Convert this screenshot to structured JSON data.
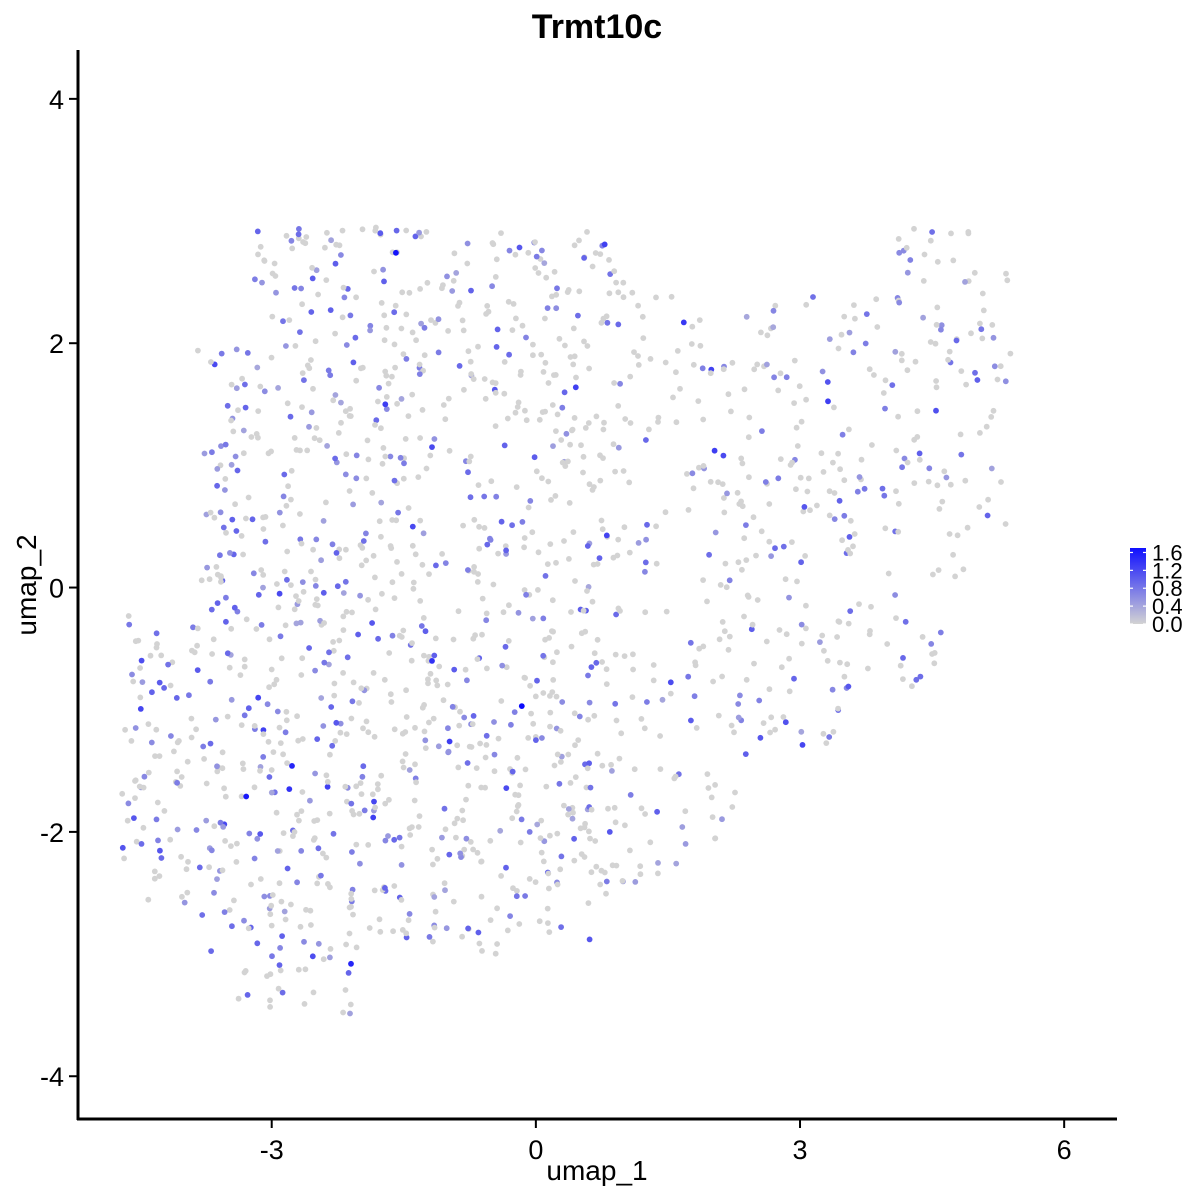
{
  "chart_data": {
    "type": "scatter",
    "title": "Trmt10c",
    "xlabel": "umap_1",
    "ylabel": "umap_2",
    "xlim": [
      -5.2,
      6.6
    ],
    "ylim": [
      -4.35,
      4.4
    ],
    "x_ticks": [
      -3,
      0,
      3,
      6
    ],
    "y_ticks": [
      -4,
      -2,
      0,
      2,
      4
    ],
    "x_tick_labels": [
      "-3",
      "0",
      "3",
      "6"
    ],
    "y_tick_labels": [
      "-4",
      "-2",
      "0",
      "2",
      "4"
    ],
    "grid": false,
    "legend": {
      "position": "right",
      "type": "colorbar",
      "labels": [
        "1.6",
        "1.2",
        "0.8",
        "0.4",
        "0.0"
      ],
      "breaks": [
        1.6,
        1.2,
        0.8,
        0.4,
        0.0
      ],
      "range": [
        0,
        1.7
      ]
    },
    "colors": {
      "low": "#d3d3d3",
      "high": "#0000ff"
    },
    "points": [
      {
        "x": -1.59,
        "y": 2.74,
        "v": 1.55
      },
      {
        "x": 1.68,
        "y": 2.17,
        "v": 1.25
      },
      {
        "x": -1.71,
        "y": 1.5,
        "v": 1.2
      },
      {
        "x": 2.03,
        "y": 1.12,
        "v": 1.2
      },
      {
        "x": 2.13,
        "y": 1.08,
        "v": 1.1
      },
      {
        "x": -1.18,
        "y": 1.15,
        "v": 1.1
      },
      {
        "x": -0.16,
        "y": -0.97,
        "v": 1.6
      },
      {
        "x": -1.18,
        "y": -0.6,
        "v": 1.3
      },
      {
        "x": -0.98,
        "y": -1.26,
        "v": 1.2
      },
      {
        "x": -3.29,
        "y": -1.71,
        "v": 1.5
      },
      {
        "x": -2.77,
        "y": -1.46,
        "v": 1.4
      },
      {
        "x": -2.8,
        "y": -1.65,
        "v": 1.3
      },
      {
        "x": -2.1,
        "y": -3.08,
        "v": 1.4
      },
      {
        "x": -2.91,
        "y": -0.05,
        "v": 1.1
      },
      {
        "x": -1.86,
        "y": -0.29,
        "v": 1.0
      },
      {
        "x": -3.52,
        "y": -0.28,
        "v": 0.9
      },
      {
        "x": 3.05,
        "y": 0.66,
        "v": 1.0
      },
      {
        "x": 3.45,
        "y": 0.71,
        "v": 0.9
      },
      {
        "x": 4.5,
        "y": 2.91,
        "v": 0.8
      },
      {
        "x": 5.13,
        "y": 0.59,
        "v": 0.9
      },
      {
        "x": 4.2,
        "y": -0.28,
        "v": 0.8
      },
      {
        "x": 3.55,
        "y": -0.81,
        "v": 1.0
      },
      {
        "x": 2.55,
        "y": -1.23,
        "v": 1.0
      },
      {
        "x": 0.84,
        "y": -2.0,
        "v": 1.0
      },
      {
        "x": 0.61,
        "y": -2.88,
        "v": 1.0
      },
      {
        "x": -0.77,
        "y": -2.79,
        "v": 0.9
      },
      {
        "x": -2.82,
        "y": -2.3,
        "v": 0.9
      },
      {
        "x": -3.79,
        "y": -2.68,
        "v": 0.8
      },
      {
        "x": -0.27,
        "y": 0.51,
        "v": 0.8
      },
      {
        "x": 0.59,
        "y": 0.34,
        "v": 0.9
      }
    ]
  }
}
